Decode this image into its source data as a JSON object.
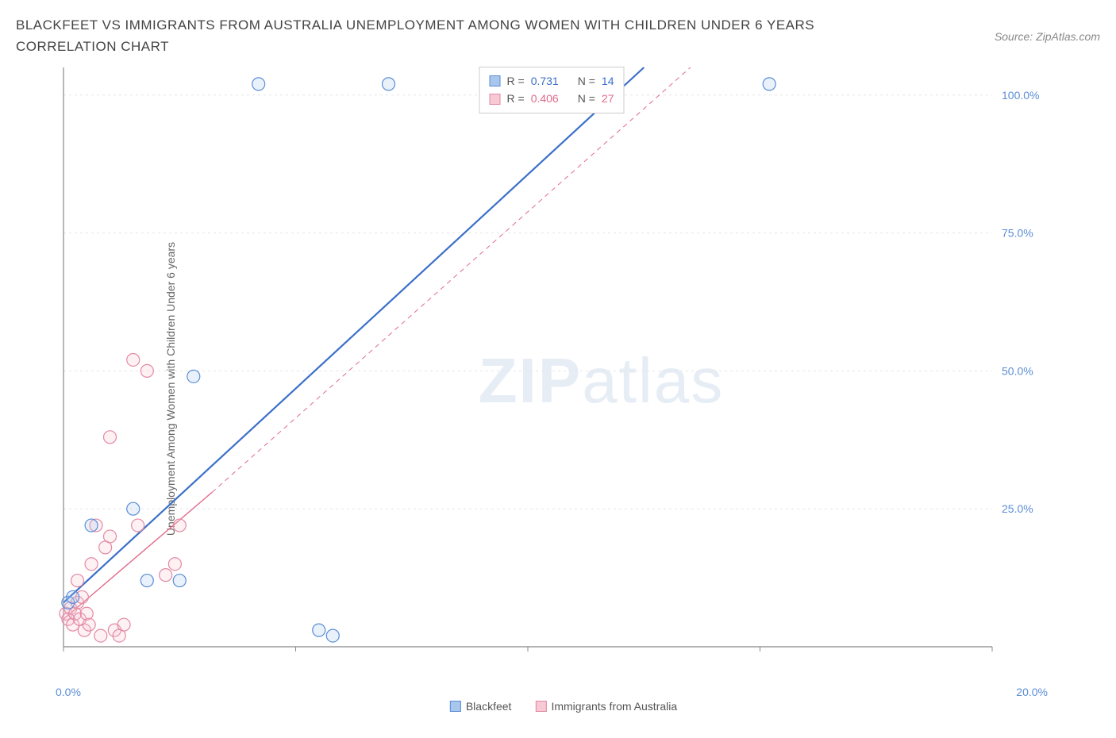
{
  "title": "BLACKFEET VS IMMIGRANTS FROM AUSTRALIA UNEMPLOYMENT AMONG WOMEN WITH CHILDREN UNDER 6 YEARS CORRELATION CHART",
  "source": "Source: ZipAtlas.com",
  "y_axis_label": "Unemployment Among Women with Children Under 6 years",
  "watermark_bold": "ZIP",
  "watermark_light": "atlas",
  "chart": {
    "type": "scatter",
    "background_color": "#ffffff",
    "grid_color": "#e5e5e5",
    "axis_color": "#888888",
    "xlim": [
      0,
      20
    ],
    "ylim": [
      0,
      105
    ],
    "x_ticks": [
      0,
      5,
      10,
      15,
      20
    ],
    "x_tick_labels": [
      "0.0%",
      "",
      "",
      "",
      "20.0%"
    ],
    "x_tick_color_left": "#5b8dd6",
    "x_tick_color_right": "#5b8dd6",
    "y_ticks": [
      25,
      50,
      75,
      100
    ],
    "y_tick_labels": [
      "25.0%",
      "50.0%",
      "75.0%",
      "100.0%"
    ],
    "y_tick_color": "#5b8dd6",
    "marker_radius": 8,
    "marker_stroke_width": 1.2,
    "marker_fill_opacity": 0.25,
    "series": [
      {
        "name": "Blackfeet",
        "fill": "#a9c6ec",
        "stroke": "#5b8dd6",
        "points": [
          [
            0.1,
            8
          ],
          [
            0.2,
            9
          ],
          [
            0.6,
            22
          ],
          [
            1.5,
            25
          ],
          [
            1.8,
            12
          ],
          [
            2.5,
            12
          ],
          [
            2.8,
            49
          ],
          [
            5.5,
            3
          ],
          [
            5.8,
            2
          ],
          [
            4.2,
            102
          ],
          [
            7.0,
            102
          ],
          [
            9.5,
            102
          ],
          [
            11.8,
            102
          ],
          [
            15.2,
            102
          ]
        ],
        "regression": {
          "x1": 0,
          "y1": 8,
          "x2": 12.5,
          "y2": 105
        },
        "line_width": 2.2,
        "line_color": "#3b6fc9",
        "R": "0.731",
        "N": "14"
      },
      {
        "name": "Immigrants from Australia",
        "fill": "#f6c9d4",
        "stroke": "#e389a3",
        "points": [
          [
            0.05,
            6
          ],
          [
            0.1,
            5
          ],
          [
            0.15,
            7
          ],
          [
            0.2,
            4
          ],
          [
            0.25,
            6
          ],
          [
            0.3,
            8
          ],
          [
            0.35,
            5
          ],
          [
            0.4,
            9
          ],
          [
            0.45,
            3
          ],
          [
            0.5,
            6
          ],
          [
            0.55,
            4
          ],
          [
            0.6,
            15
          ],
          [
            0.7,
            22
          ],
          [
            0.8,
            2
          ],
          [
            0.9,
            18
          ],
          [
            1.0,
            20
          ],
          [
            1.1,
            3
          ],
          [
            1.2,
            2
          ],
          [
            1.3,
            4
          ],
          [
            1.5,
            52
          ],
          [
            1.6,
            22
          ],
          [
            1.8,
            50
          ],
          [
            2.2,
            13
          ],
          [
            2.4,
            15
          ],
          [
            2.5,
            22
          ],
          [
            1.0,
            38
          ],
          [
            0.3,
            12
          ]
        ],
        "regression": {
          "x1": 0,
          "y1": 5,
          "x2": 3.2,
          "y2": 28
        },
        "extended_dash": {
          "x1": 3.2,
          "y1": 28,
          "x2": 13.5,
          "y2": 105
        },
        "line_width": 1.4,
        "line_color": "#e06b8b",
        "dash": "6,5",
        "R": "0.406",
        "N": "27"
      }
    ],
    "legend_top": {
      "r_label": "R =",
      "n_label": "N ="
    },
    "legend_bottom": [
      {
        "label": "Blackfeet",
        "fill": "#a9c6ec",
        "stroke": "#5b8dd6"
      },
      {
        "label": "Immigrants from Australia",
        "fill": "#f6c9d4",
        "stroke": "#e389a3"
      }
    ]
  }
}
